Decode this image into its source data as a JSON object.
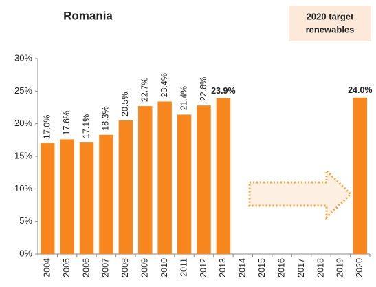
{
  "chart_data": {
    "type": "bar",
    "title": "Romania",
    "annotation": [
      "2020 target",
      "renewables"
    ],
    "categories": [
      "2004",
      "2005",
      "2006",
      "2007",
      "2008",
      "2009",
      "2010",
      "2011",
      "2012",
      "2013",
      "2014",
      "2015",
      "2016",
      "2017",
      "2018",
      "2019",
      "2020"
    ],
    "values": [
      17.0,
      17.6,
      17.1,
      18.3,
      20.5,
      22.7,
      23.4,
      21.4,
      22.8,
      23.9,
      null,
      null,
      null,
      null,
      null,
      null,
      24.0
    ],
    "value_labels": [
      "17.0%",
      "17.6%",
      "17.1%",
      "18.3%",
      "20.5%",
      "22.7%",
      "23.4%",
      "21.4%",
      "22.8%",
      "23.9%",
      null,
      null,
      null,
      null,
      null,
      null,
      "24.0%"
    ],
    "color": "#f7861e",
    "ylim": [
      0,
      30
    ],
    "yticks": [
      {
        "value": 0,
        "label": "0%"
      },
      {
        "value": 5,
        "label": "5%"
      },
      {
        "value": 10,
        "label": "10%"
      },
      {
        "value": 15,
        "label": "15%"
      },
      {
        "value": 20,
        "label": "20%"
      },
      {
        "value": 25,
        "label": "25%"
      },
      {
        "value": 30,
        "label": "30%"
      }
    ],
    "grid": false
  }
}
